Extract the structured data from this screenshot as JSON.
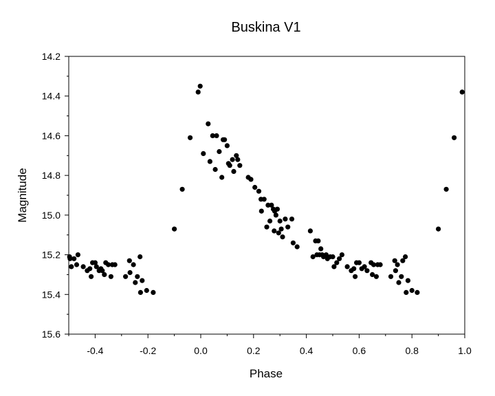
{
  "chart_data": {
    "type": "scatter",
    "title": "Buskina V1",
    "xlabel": "Phase",
    "ylabel": "Magnitude",
    "xlim": [
      -0.5,
      1.0
    ],
    "ylim": [
      14.2,
      15.6
    ],
    "y_inverted": true,
    "grid": false,
    "x_ticks": [
      -0.4,
      -0.2,
      0.0,
      0.2,
      0.4,
      0.6,
      0.8,
      1.0
    ],
    "x_tick_labels": [
      "-0.4",
      "-0.2",
      "0.0",
      "0.2",
      "0.4",
      "0.6",
      "0.8",
      "1.0"
    ],
    "y_ticks": [
      14.2,
      14.4,
      14.6,
      14.8,
      15.0,
      15.2,
      15.4,
      15.6
    ],
    "y_tick_labels": [
      "14.2",
      "14.4",
      "14.6",
      "14.8",
      "15.0",
      "15.2",
      "15.4",
      "15.6"
    ],
    "marker_color": "#000000",
    "points": [
      [
        -0.497,
        15.21
      ],
      [
        -0.495,
        15.22
      ],
      [
        -0.49,
        15.26
      ],
      [
        -0.48,
        15.22
      ],
      [
        -0.47,
        15.25
      ],
      [
        -0.465,
        15.2
      ],
      [
        -0.445,
        15.26
      ],
      [
        -0.43,
        15.28
      ],
      [
        -0.42,
        15.27
      ],
      [
        -0.415,
        15.31
      ],
      [
        -0.41,
        15.24
      ],
      [
        -0.4,
        15.24
      ],
      [
        -0.395,
        15.26
      ],
      [
        -0.385,
        15.28
      ],
      [
        -0.378,
        15.27
      ],
      [
        -0.373,
        15.28
      ],
      [
        -0.365,
        15.3
      ],
      [
        -0.36,
        15.24
      ],
      [
        -0.35,
        15.25
      ],
      [
        -0.34,
        15.31
      ],
      [
        -0.335,
        15.25
      ],
      [
        -0.325,
        15.25
      ],
      [
        -0.285,
        15.31
      ],
      [
        -0.27,
        15.23
      ],
      [
        -0.268,
        15.29
      ],
      [
        -0.255,
        15.25
      ],
      [
        -0.248,
        15.34
      ],
      [
        -0.24,
        15.31
      ],
      [
        -0.23,
        15.21
      ],
      [
        -0.228,
        15.39
      ],
      [
        -0.222,
        15.33
      ],
      [
        -0.205,
        15.38
      ],
      [
        -0.18,
        15.39
      ],
      [
        -0.1,
        15.07
      ],
      [
        -0.07,
        14.87
      ],
      [
        -0.04,
        14.61
      ],
      [
        -0.01,
        14.38
      ],
      [
        -0.002,
        14.35
      ],
      [
        0.01,
        14.69
      ],
      [
        0.028,
        14.54
      ],
      [
        0.035,
        14.73
      ],
      [
        0.045,
        14.6
      ],
      [
        0.055,
        14.77
      ],
      [
        0.06,
        14.6
      ],
      [
        0.07,
        14.68
      ],
      [
        0.08,
        14.81
      ],
      [
        0.085,
        14.62
      ],
      [
        0.09,
        14.62
      ],
      [
        0.1,
        14.65
      ],
      [
        0.105,
        14.74
      ],
      [
        0.11,
        14.75
      ],
      [
        0.12,
        14.72
      ],
      [
        0.125,
        14.78
      ],
      [
        0.135,
        14.7
      ],
      [
        0.14,
        14.72
      ],
      [
        0.148,
        14.75
      ],
      [
        0.18,
        14.81
      ],
      [
        0.19,
        14.82
      ],
      [
        0.205,
        14.86
      ],
      [
        0.22,
        14.88
      ],
      [
        0.228,
        14.92
      ],
      [
        0.23,
        14.98
      ],
      [
        0.24,
        14.92
      ],
      [
        0.25,
        15.06
      ],
      [
        0.255,
        14.95
      ],
      [
        0.262,
        15.03
      ],
      [
        0.268,
        14.95
      ],
      [
        0.275,
        14.97
      ],
      [
        0.278,
        15.08
      ],
      [
        0.28,
        14.98
      ],
      [
        0.285,
        15.0
      ],
      [
        0.29,
        14.97
      ],
      [
        0.295,
        15.09
      ],
      [
        0.3,
        15.03
      ],
      [
        0.305,
        15.07
      ],
      [
        0.31,
        15.11
      ],
      [
        0.32,
        15.02
      ],
      [
        0.33,
        15.06
      ],
      [
        0.345,
        15.02
      ],
      [
        0.35,
        15.14
      ],
      [
        0.365,
        15.16
      ],
      [
        0.415,
        15.08
      ],
      [
        0.425,
        15.21
      ],
      [
        0.435,
        15.13
      ],
      [
        0.44,
        15.2
      ],
      [
        0.445,
        15.13
      ],
      [
        0.45,
        15.2
      ],
      [
        0.455,
        15.17
      ],
      [
        0.46,
        15.2
      ],
      [
        0.465,
        15.21
      ],
      [
        0.475,
        15.2
      ],
      [
        0.48,
        15.22
      ],
      [
        0.49,
        15.21
      ],
      [
        0.5,
        15.21
      ],
      [
        0.505,
        15.26
      ],
      [
        0.515,
        15.24
      ],
      [
        0.525,
        15.22
      ],
      [
        0.535,
        15.2
      ],
      [
        0.555,
        15.26
      ],
      [
        0.57,
        15.28
      ],
      [
        0.58,
        15.27
      ],
      [
        0.585,
        15.31
      ],
      [
        0.59,
        15.24
      ],
      [
        0.6,
        15.24
      ],
      [
        0.61,
        15.27
      ],
      [
        0.62,
        15.26
      ],
      [
        0.63,
        15.28
      ],
      [
        0.645,
        15.24
      ],
      [
        0.65,
        15.3
      ],
      [
        0.655,
        15.25
      ],
      [
        0.665,
        15.31
      ],
      [
        0.67,
        15.25
      ],
      [
        0.68,
        15.25
      ],
      [
        0.72,
        15.31
      ],
      [
        0.735,
        15.23
      ],
      [
        0.738,
        15.28
      ],
      [
        0.745,
        15.25
      ],
      [
        0.75,
        15.34
      ],
      [
        0.76,
        15.31
      ],
      [
        0.765,
        15.23
      ],
      [
        0.775,
        15.21
      ],
      [
        0.778,
        15.39
      ],
      [
        0.785,
        15.33
      ],
      [
        0.8,
        15.38
      ],
      [
        0.82,
        15.39
      ],
      [
        0.9,
        15.07
      ],
      [
        0.93,
        14.87
      ],
      [
        0.96,
        14.61
      ],
      [
        0.99,
        14.38
      ]
    ]
  }
}
